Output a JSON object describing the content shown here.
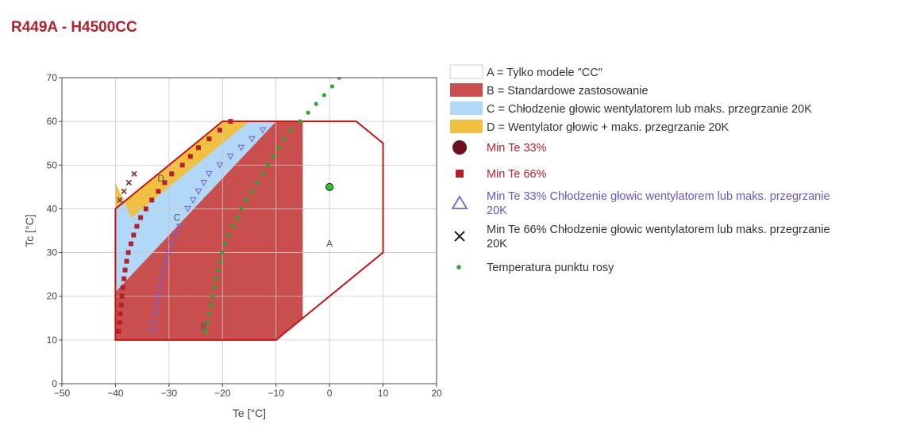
{
  "title": "R449A - H4500CC",
  "chart_data": {
    "type": "scatter",
    "xlabel": "Te [°C]",
    "ylabel": "Tc [°C]",
    "xlim": [
      -50,
      20
    ],
    "ylim": [
      0,
      70
    ],
    "x_ticks": [
      -50,
      -40,
      -30,
      -20,
      -10,
      0,
      10,
      20
    ],
    "y_ticks": [
      0,
      10,
      20,
      30,
      40,
      50,
      60,
      70
    ],
    "x_tick_labels": [
      "−50",
      "−40",
      "−30",
      "−20",
      "−10",
      "0",
      "10",
      "20"
    ],
    "y_tick_labels": [
      "0",
      "10",
      "20",
      "30",
      "40",
      "50",
      "60",
      "70"
    ],
    "grid": true,
    "legend_position": "right",
    "regions": [
      {
        "key": "A",
        "name": "A = Tylko modele \"CC\"",
        "label": "A",
        "label_at": [
          0,
          32
        ],
        "fill": "#ffffff",
        "border": "#cc1111",
        "polygon": [
          [
            -5,
            60
          ],
          [
            5,
            60
          ],
          [
            10,
            55
          ],
          [
            10,
            30
          ],
          [
            -5,
            15
          ],
          [
            -10,
            10
          ],
          [
            -40,
            10
          ],
          [
            -40,
            40
          ],
          [
            -20,
            60
          ],
          [
            -5,
            60
          ]
        ]
      },
      {
        "key": "B",
        "name": "B = Standardowe zastosowanie",
        "label": "B",
        "label_at": [
          -23.5,
          13
        ],
        "fill": "#c94e4e",
        "polygon": [
          [
            -40,
            10
          ],
          [
            -10,
            10
          ],
          [
            -5,
            15
          ],
          [
            -5,
            60
          ],
          [
            -10,
            60
          ],
          [
            -40,
            21
          ]
        ]
      },
      {
        "key": "C",
        "name": "C = Chłodzenie głowic wentylatorem lub maks. przegrzanie 20K",
        "label": "C",
        "label_at": [
          -28.5,
          38
        ],
        "fill": "#b1d8f7",
        "polygon": [
          [
            -40,
            21
          ],
          [
            -10,
            60
          ],
          [
            -20,
            60
          ],
          [
            -40,
            40
          ]
        ]
      },
      {
        "key": "D",
        "name": "D = Wentylator głowic + maks. przegrzanie 20K",
        "label": "D",
        "label_at": [
          -31.5,
          47
        ],
        "fill": "#f0c040",
        "polygon": [
          [
            -40,
            40
          ],
          [
            -20,
            60
          ],
          [
            -15,
            60
          ],
          [
            -37,
            38
          ],
          [
            -40,
            46
          ]
        ]
      }
    ],
    "series": [
      {
        "name": "Min Te 33%",
        "marker": "circle-large",
        "color": "#6b0f1a",
        "points": [
          [
            0,
            45
          ]
        ]
      },
      {
        "name": "Min Te 66%",
        "marker": "square",
        "color": "#b5202e",
        "points": [
          [
            -39.4,
            12
          ],
          [
            -39.2,
            14
          ],
          [
            -39.1,
            16
          ],
          [
            -38.9,
            18
          ],
          [
            -38.8,
            20
          ],
          [
            -38.6,
            22
          ],
          [
            -38.4,
            24
          ],
          [
            -38.2,
            26
          ],
          [
            -37.9,
            28
          ],
          [
            -37.6,
            30
          ],
          [
            -37.1,
            32
          ],
          [
            -36.6,
            34
          ],
          [
            -36,
            36
          ],
          [
            -35.3,
            38
          ],
          [
            -34.3,
            40
          ],
          [
            -33.2,
            42
          ],
          [
            -32,
            44
          ],
          [
            -30.8,
            46
          ],
          [
            -29.5,
            48
          ],
          [
            -27.5,
            50
          ],
          [
            -26,
            52
          ],
          [
            -24.5,
            54
          ],
          [
            -22.5,
            56
          ],
          [
            -20.5,
            58
          ],
          [
            -18.5,
            60
          ]
        ]
      },
      {
        "name": "Min Te 33% Chłodzenie głowic wentylatorem lub maks. przegrzanie 20K",
        "marker": "triangle-down",
        "color": "#7a5fd0",
        "points": [
          [
            -33.1,
            12
          ],
          [
            -32.8,
            14
          ],
          [
            -32.6,
            16
          ],
          [
            -32.3,
            18
          ],
          [
            -32,
            20
          ],
          [
            -31.7,
            22
          ],
          [
            -31.4,
            24
          ],
          [
            -31,
            26
          ],
          [
            -30.6,
            28
          ],
          [
            -30.1,
            30
          ],
          [
            -29.5,
            32
          ],
          [
            -28.8,
            34
          ],
          [
            -28,
            36
          ],
          [
            -26.5,
            40
          ],
          [
            -25.5,
            42
          ],
          [
            -24.5,
            44
          ],
          [
            -23.5,
            46
          ],
          [
            -22.5,
            48
          ],
          [
            -20.5,
            50
          ],
          [
            -18.5,
            52
          ],
          [
            -16.5,
            54
          ],
          [
            -14.5,
            56
          ],
          [
            -12.5,
            58
          ]
        ]
      },
      {
        "name": "Min Te 66% Chłodzenie głowic wentylatorem lub maks. przegrzanie 20K",
        "marker": "x",
        "color": "#8a3a3a",
        "points": [
          [
            -39.2,
            42
          ],
          [
            -38.4,
            44
          ],
          [
            -37.5,
            46
          ],
          [
            -36.5,
            48
          ]
        ]
      },
      {
        "name": "Temperatura punktu rosy",
        "marker": "dot",
        "color": "#2ea52e",
        "points": [
          [
            -23.2,
            12
          ],
          [
            -22.8,
            14
          ],
          [
            -22.5,
            16
          ],
          [
            -22.1,
            18
          ],
          [
            -21.8,
            20
          ],
          [
            -21.5,
            22
          ],
          [
            -21.2,
            24
          ],
          [
            -20.8,
            26
          ],
          [
            -20.4,
            28
          ],
          [
            -20.1,
            30
          ],
          [
            -19.5,
            32
          ],
          [
            -18.8,
            34
          ],
          [
            -18,
            36
          ],
          [
            -17.2,
            38
          ],
          [
            -16.5,
            40
          ],
          [
            -15.5,
            42
          ],
          [
            -14.5,
            44
          ],
          [
            -13.5,
            46
          ],
          [
            -12.5,
            48
          ],
          [
            -11.5,
            50
          ],
          [
            -10.5,
            52
          ],
          [
            -9.5,
            54
          ],
          [
            -8.5,
            56
          ],
          [
            -7.2,
            58
          ],
          [
            -5.5,
            60
          ],
          [
            -4,
            62
          ],
          [
            -2.5,
            64
          ],
          [
            -1,
            66
          ],
          [
            0.5,
            68
          ],
          [
            1.8,
            70
          ]
        ]
      }
    ]
  }
}
